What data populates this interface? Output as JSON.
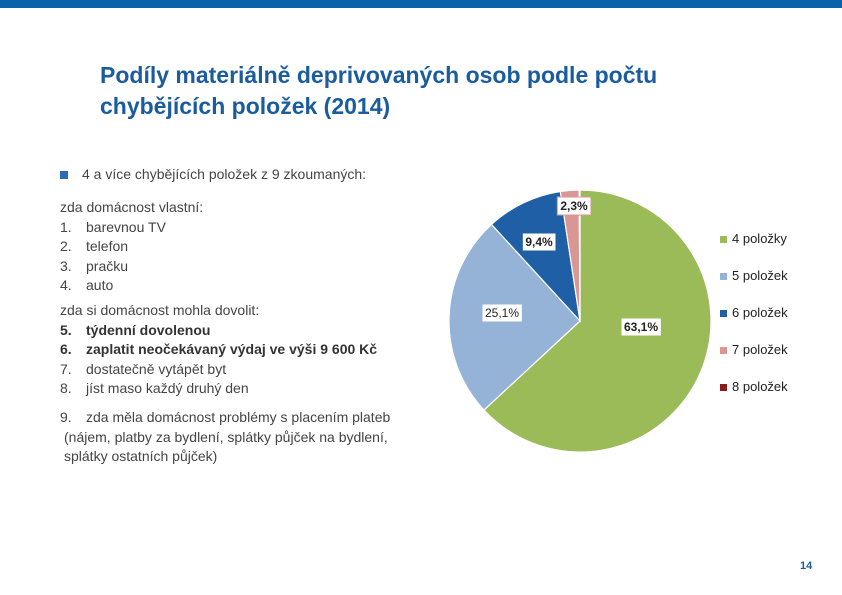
{
  "page": {
    "title": "Podíly materiálně deprivovaných osob podle počtu chybějících položek (2014)",
    "bullet": "4 a více chybějících položek z 9 zkoumaných:",
    "block1": {
      "heading": "zda domácnost vlastní:",
      "items": [
        {
          "num": "1.",
          "text": "barevnou TV"
        },
        {
          "num": "2.",
          "text": "telefon"
        },
        {
          "num": "3.",
          "text": "pračku"
        },
        {
          "num": "4.",
          "text": "auto"
        }
      ]
    },
    "block2": {
      "heading": "zda si domácnost mohla dovolit:",
      "items": [
        {
          "num": "5.",
          "text": "týdenní dovolenou"
        },
        {
          "num": "6.",
          "text": "zaplatit neočekávaný výdaj ve výši 9 600 Kč"
        },
        {
          "num": "7.",
          "text": "dostatečně vytápět byt"
        },
        {
          "num": "8.",
          "text": "jíst maso každý druhý den"
        }
      ]
    },
    "block3": {
      "num": "9.",
      "line1": "zda měla domácnost problémy s placením plateb",
      "line2": "(nájem, platby za bydlení, splátky půjček na bydlení,",
      "line3": "splátky ostatních půjček)"
    },
    "page_number": "14"
  },
  "chart_data": {
    "type": "pie",
    "categories": [
      "4 položky",
      "5 položek",
      "6 položek",
      "7 položek",
      "8 položek"
    ],
    "values": [
      63.1,
      25.1,
      9.4,
      2.3,
      0.1
    ],
    "labels": [
      "63,1%",
      "25,1%",
      "9,4%",
      "2,3%",
      ""
    ],
    "colors": [
      "#9bbb59",
      "#95b3d7",
      "#1f5fa6",
      "#d99694",
      "#8b1a1a"
    ],
    "legend_position": "right"
  }
}
